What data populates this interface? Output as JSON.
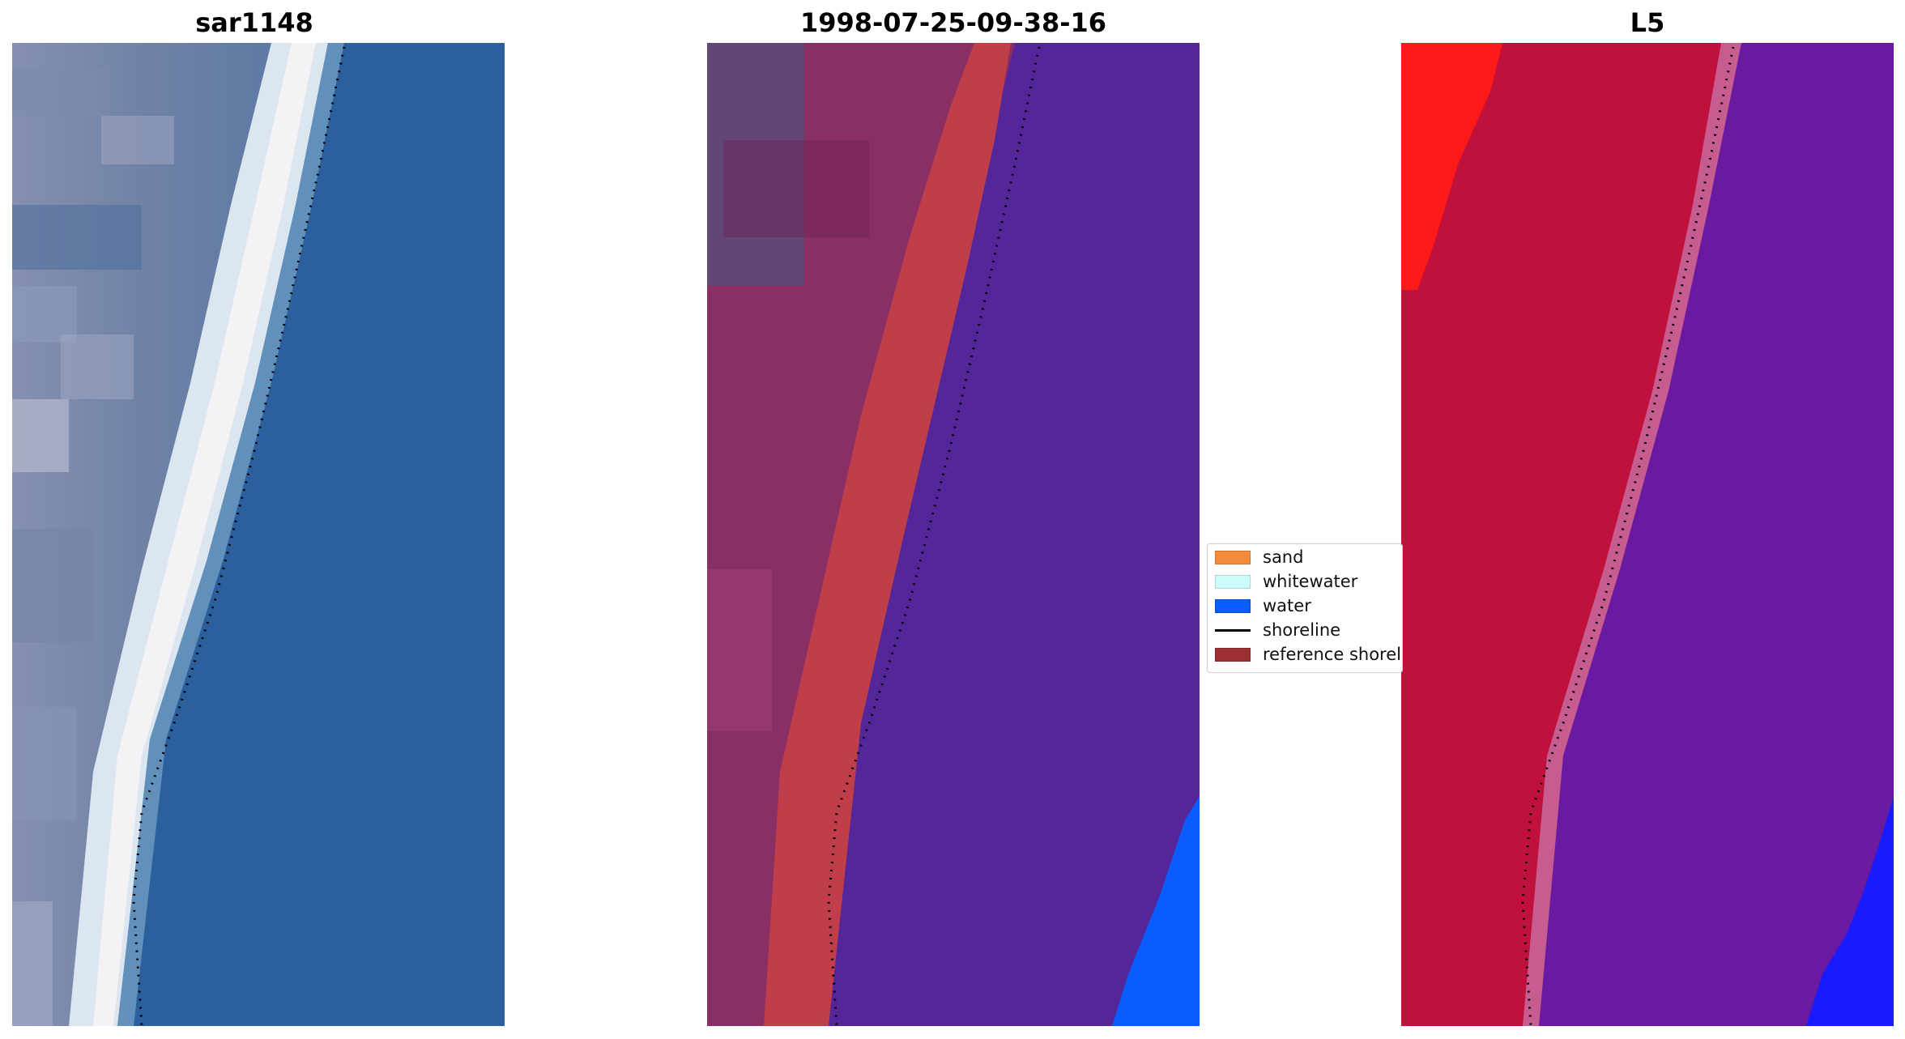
{
  "panels": [
    {
      "title": "sar1148"
    },
    {
      "title": "1998-07-25-09-38-16"
    },
    {
      "title": "L5"
    }
  ],
  "legend": {
    "items": [
      {
        "label": "sand",
        "color": "#f28c3a",
        "kind": "patch"
      },
      {
        "label": "whitewater",
        "color": "#ccfcfc",
        "kind": "patch"
      },
      {
        "label": "water",
        "color": "#0a5cff",
        "kind": "patch"
      },
      {
        "label": "shoreline",
        "color": "#000000",
        "kind": "line"
      },
      {
        "label": "reference shoreline",
        "color": "#9c2f33",
        "kind": "patch"
      }
    ]
  },
  "colors": {
    "ocean_rgb": "#2a5e9c",
    "land_rgb": "#5f7fa8",
    "surf_rgb": "#e8eef5",
    "sand_class": "#bf3e4a",
    "water_class": "#55269a",
    "land_class": "#8a2f64",
    "prob_sand": "#c0103c",
    "prob_water": "#6a1aa0",
    "prob_high_water": "#1a1aff",
    "prob_high_sand": "#ff1a1a"
  }
}
